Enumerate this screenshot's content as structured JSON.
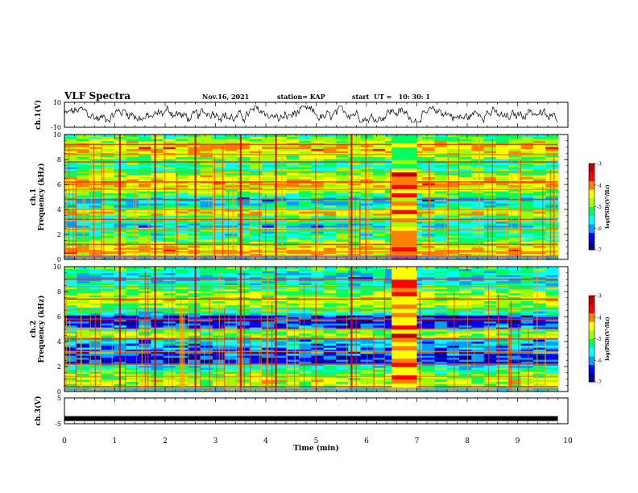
{
  "header": {
    "title": "VLF Spectra",
    "date": "Nov.16, 2021",
    "station": "station= KAP",
    "start": "start  UT =   10: 30: 1"
  },
  "colors": {
    "spectrum_scale": [
      "#000090",
      "#0000ff",
      "#00a0ff",
      "#00ffff",
      "#00ff60",
      "#a0ff00",
      "#ffff00",
      "#ff8000",
      "#ff0000",
      "#c00000"
    ],
    "trace": "#000000"
  },
  "chart_data": [
    {
      "id": "ch1_waveform",
      "type": "line",
      "ylabel": "ch.1(V)",
      "ylim": [
        -10,
        10
      ],
      "yticks": [
        "10",
        "-10"
      ],
      "xlim": [
        0,
        10
      ],
      "description_values": "noisy signal oscillating roughly between -5 and 5 V"
    },
    {
      "id": "ch1_spectrogram",
      "type": "heatmap",
      "ylabel_top": "ch.1",
      "ylabel": "Frequency (kHz)",
      "ylim": [
        0,
        10
      ],
      "yticks": [
        "0",
        "2",
        "4",
        "6",
        "8",
        "10"
      ],
      "xlim": [
        0,
        10
      ],
      "data_extent_min": 9.8,
      "colorbar": {
        "label": "log(PSD)(V²/Hz)",
        "range": [
          -7,
          -3
        ],
        "ticks": [
          "-3",
          "-4",
          "-5",
          "-6",
          "-7"
        ]
      },
      "bands_khz": [
        0.2,
        0.6,
        1.2,
        2.4,
        3.2,
        4.0,
        4.8,
        5.6,
        6.2,
        7.0,
        7.8,
        8.4,
        9.2
      ],
      "events_min": [
        1.1,
        1.8,
        2.6,
        3.5,
        4.2,
        5.7
      ],
      "interference_block_min": [
        6.5,
        7.0
      ]
    },
    {
      "id": "ch2_spectrogram",
      "type": "heatmap",
      "ylabel_top": "ch.2",
      "ylabel": "Frequency (kHz)",
      "ylim": [
        0,
        10
      ],
      "yticks": [
        "0",
        "2",
        "4",
        "6",
        "8",
        "10"
      ],
      "xlim": [
        0,
        10
      ],
      "data_extent_min": 9.8,
      "colorbar": {
        "label": "log(PSD)(V²/Hz)",
        "range": [
          -7,
          -3
        ],
        "ticks": [
          "-3",
          "-4",
          "-5",
          "-6",
          "-7"
        ]
      },
      "bands_khz": [
        0.4,
        1.2,
        2.2,
        3.2,
        4.2,
        5.0,
        5.8,
        6.6,
        7.4,
        8.4,
        9.0
      ],
      "events_min": [
        1.1,
        1.8,
        2.6,
        3.5,
        4.2,
        5.7
      ],
      "interference_block_min": [
        6.5,
        7.0
      ]
    },
    {
      "id": "ch3_waveform",
      "type": "line",
      "ylabel": "ch.3(V)",
      "ylim": [
        -5,
        5
      ],
      "yticks": [
        "5",
        "-5"
      ],
      "xlim": [
        0,
        10
      ],
      "xlabel": "Time (min)",
      "xticks": [
        "0",
        "1",
        "2",
        "3",
        "4",
        "5",
        "6",
        "7",
        "8",
        "9",
        "10"
      ],
      "level_v": -3,
      "data_extent_min": 9.8
    }
  ]
}
